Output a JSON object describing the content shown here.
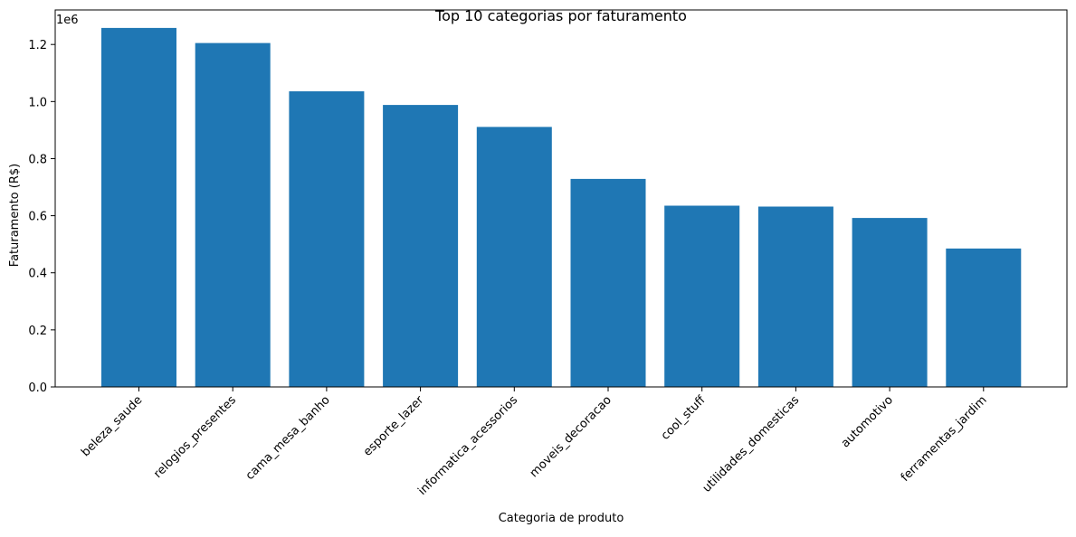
{
  "chart_data": {
    "type": "bar",
    "title": "Top 10 categorias por faturamento",
    "xlabel": "Categoria de produto",
    "ylabel": "Faturamento (R$)",
    "offset_label": "1e6",
    "categories": [
      "beleza_saude",
      "relogios_presentes",
      "cama_mesa_banho",
      "esporte_lazer",
      "informatica_acessorios",
      "moveis_decoracao",
      "cool_stuff",
      "utilidades_domesticas",
      "automotivo",
      "ferramentas_jardim"
    ],
    "values": [
      1258000,
      1205000,
      1036000,
      988000,
      911000,
      729000,
      635000,
      632000,
      592000,
      485000
    ],
    "yticks": [
      0,
      200000,
      400000,
      600000,
      800000,
      1000000,
      1200000
    ],
    "ytick_labels": [
      "0.0",
      "0.2",
      "0.4",
      "0.6",
      "0.8",
      "1.0",
      "1.2"
    ],
    "ylim": [
      0,
      1321000
    ],
    "bar_color": "#1f77b4",
    "grid": false,
    "legend": "none"
  }
}
